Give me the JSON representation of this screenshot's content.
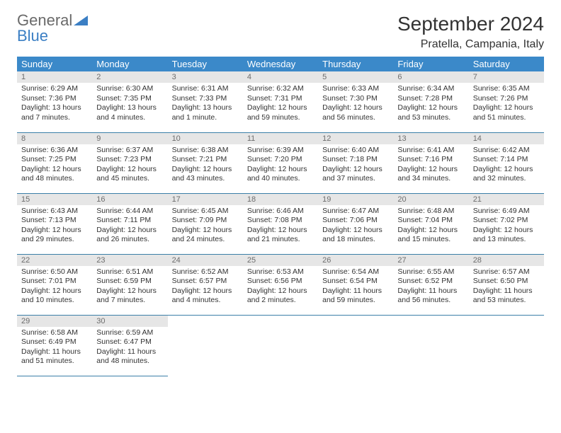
{
  "logo": {
    "part1": "General",
    "part2": "Blue"
  },
  "title": "September 2024",
  "location": "Pratella, Campania, Italy",
  "header_bg": "#3b89c9",
  "daynum_bg": "#e6e6e6",
  "rule_color": "#3b7fa8",
  "day_headers": [
    "Sunday",
    "Monday",
    "Tuesday",
    "Wednesday",
    "Thursday",
    "Friday",
    "Saturday"
  ],
  "weeks": [
    [
      {
        "n": "1",
        "sr": "Sunrise: 6:29 AM",
        "ss": "Sunset: 7:36 PM",
        "dl1": "Daylight: 13 hours",
        "dl2": "and 7 minutes."
      },
      {
        "n": "2",
        "sr": "Sunrise: 6:30 AM",
        "ss": "Sunset: 7:35 PM",
        "dl1": "Daylight: 13 hours",
        "dl2": "and 4 minutes."
      },
      {
        "n": "3",
        "sr": "Sunrise: 6:31 AM",
        "ss": "Sunset: 7:33 PM",
        "dl1": "Daylight: 13 hours",
        "dl2": "and 1 minute."
      },
      {
        "n": "4",
        "sr": "Sunrise: 6:32 AM",
        "ss": "Sunset: 7:31 PM",
        "dl1": "Daylight: 12 hours",
        "dl2": "and 59 minutes."
      },
      {
        "n": "5",
        "sr": "Sunrise: 6:33 AM",
        "ss": "Sunset: 7:30 PM",
        "dl1": "Daylight: 12 hours",
        "dl2": "and 56 minutes."
      },
      {
        "n": "6",
        "sr": "Sunrise: 6:34 AM",
        "ss": "Sunset: 7:28 PM",
        "dl1": "Daylight: 12 hours",
        "dl2": "and 53 minutes."
      },
      {
        "n": "7",
        "sr": "Sunrise: 6:35 AM",
        "ss": "Sunset: 7:26 PM",
        "dl1": "Daylight: 12 hours",
        "dl2": "and 51 minutes."
      }
    ],
    [
      {
        "n": "8",
        "sr": "Sunrise: 6:36 AM",
        "ss": "Sunset: 7:25 PM",
        "dl1": "Daylight: 12 hours",
        "dl2": "and 48 minutes."
      },
      {
        "n": "9",
        "sr": "Sunrise: 6:37 AM",
        "ss": "Sunset: 7:23 PM",
        "dl1": "Daylight: 12 hours",
        "dl2": "and 45 minutes."
      },
      {
        "n": "10",
        "sr": "Sunrise: 6:38 AM",
        "ss": "Sunset: 7:21 PM",
        "dl1": "Daylight: 12 hours",
        "dl2": "and 43 minutes."
      },
      {
        "n": "11",
        "sr": "Sunrise: 6:39 AM",
        "ss": "Sunset: 7:20 PM",
        "dl1": "Daylight: 12 hours",
        "dl2": "and 40 minutes."
      },
      {
        "n": "12",
        "sr": "Sunrise: 6:40 AM",
        "ss": "Sunset: 7:18 PM",
        "dl1": "Daylight: 12 hours",
        "dl2": "and 37 minutes."
      },
      {
        "n": "13",
        "sr": "Sunrise: 6:41 AM",
        "ss": "Sunset: 7:16 PM",
        "dl1": "Daylight: 12 hours",
        "dl2": "and 34 minutes."
      },
      {
        "n": "14",
        "sr": "Sunrise: 6:42 AM",
        "ss": "Sunset: 7:14 PM",
        "dl1": "Daylight: 12 hours",
        "dl2": "and 32 minutes."
      }
    ],
    [
      {
        "n": "15",
        "sr": "Sunrise: 6:43 AM",
        "ss": "Sunset: 7:13 PM",
        "dl1": "Daylight: 12 hours",
        "dl2": "and 29 minutes."
      },
      {
        "n": "16",
        "sr": "Sunrise: 6:44 AM",
        "ss": "Sunset: 7:11 PM",
        "dl1": "Daylight: 12 hours",
        "dl2": "and 26 minutes."
      },
      {
        "n": "17",
        "sr": "Sunrise: 6:45 AM",
        "ss": "Sunset: 7:09 PM",
        "dl1": "Daylight: 12 hours",
        "dl2": "and 24 minutes."
      },
      {
        "n": "18",
        "sr": "Sunrise: 6:46 AM",
        "ss": "Sunset: 7:08 PM",
        "dl1": "Daylight: 12 hours",
        "dl2": "and 21 minutes."
      },
      {
        "n": "19",
        "sr": "Sunrise: 6:47 AM",
        "ss": "Sunset: 7:06 PM",
        "dl1": "Daylight: 12 hours",
        "dl2": "and 18 minutes."
      },
      {
        "n": "20",
        "sr": "Sunrise: 6:48 AM",
        "ss": "Sunset: 7:04 PM",
        "dl1": "Daylight: 12 hours",
        "dl2": "and 15 minutes."
      },
      {
        "n": "21",
        "sr": "Sunrise: 6:49 AM",
        "ss": "Sunset: 7:02 PM",
        "dl1": "Daylight: 12 hours",
        "dl2": "and 13 minutes."
      }
    ],
    [
      {
        "n": "22",
        "sr": "Sunrise: 6:50 AM",
        "ss": "Sunset: 7:01 PM",
        "dl1": "Daylight: 12 hours",
        "dl2": "and 10 minutes."
      },
      {
        "n": "23",
        "sr": "Sunrise: 6:51 AM",
        "ss": "Sunset: 6:59 PM",
        "dl1": "Daylight: 12 hours",
        "dl2": "and 7 minutes."
      },
      {
        "n": "24",
        "sr": "Sunrise: 6:52 AM",
        "ss": "Sunset: 6:57 PM",
        "dl1": "Daylight: 12 hours",
        "dl2": "and 4 minutes."
      },
      {
        "n": "25",
        "sr": "Sunrise: 6:53 AM",
        "ss": "Sunset: 6:56 PM",
        "dl1": "Daylight: 12 hours",
        "dl2": "and 2 minutes."
      },
      {
        "n": "26",
        "sr": "Sunrise: 6:54 AM",
        "ss": "Sunset: 6:54 PM",
        "dl1": "Daylight: 11 hours",
        "dl2": "and 59 minutes."
      },
      {
        "n": "27",
        "sr": "Sunrise: 6:55 AM",
        "ss": "Sunset: 6:52 PM",
        "dl1": "Daylight: 11 hours",
        "dl2": "and 56 minutes."
      },
      {
        "n": "28",
        "sr": "Sunrise: 6:57 AM",
        "ss": "Sunset: 6:50 PM",
        "dl1": "Daylight: 11 hours",
        "dl2": "and 53 minutes."
      }
    ],
    [
      {
        "n": "29",
        "sr": "Sunrise: 6:58 AM",
        "ss": "Sunset: 6:49 PM",
        "dl1": "Daylight: 11 hours",
        "dl2": "and 51 minutes."
      },
      {
        "n": "30",
        "sr": "Sunrise: 6:59 AM",
        "ss": "Sunset: 6:47 PM",
        "dl1": "Daylight: 11 hours",
        "dl2": "and 48 minutes."
      },
      null,
      null,
      null,
      null,
      null
    ]
  ]
}
